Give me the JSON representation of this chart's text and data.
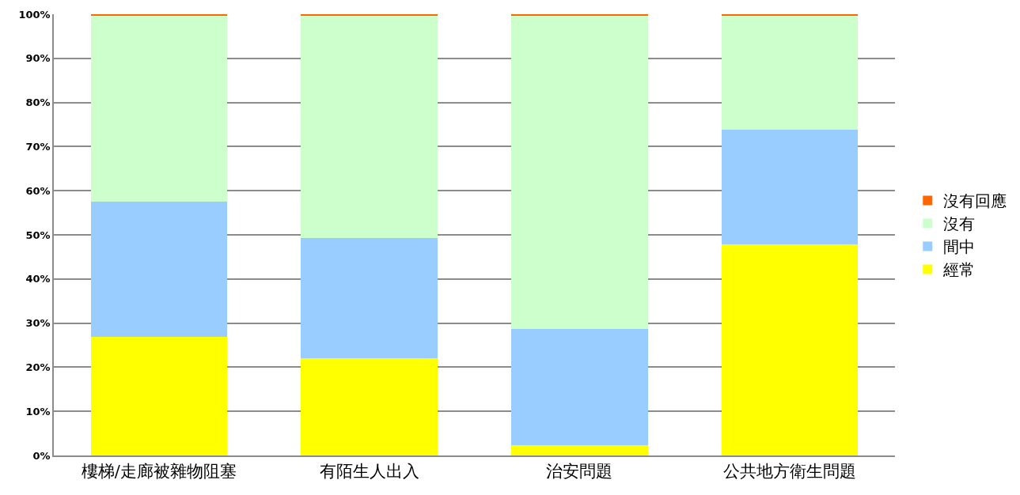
{
  "chart_data": {
    "type": "bar",
    "stacked": true,
    "categories": [
      "樓梯/走廊被雜物阻塞",
      "有陌生人出入",
      "治安問題",
      "公共地方衛生問題"
    ],
    "series": [
      {
        "name": "經常",
        "color": "#ffff00",
        "values": [
          26.9,
          22.1,
          2.3,
          47.8
        ]
      },
      {
        "name": "間中",
        "color": "#99ccff",
        "values": [
          30.7,
          27.2,
          26.4,
          26.1
        ]
      },
      {
        "name": "沒有",
        "color": "#ccffcc",
        "values": [
          42.0,
          50.3,
          70.9,
          25.7
        ]
      },
      {
        "name": "沒有回應",
        "color": "#ff6600",
        "values": [
          0.4,
          0.4,
          0.4,
          0.4
        ]
      }
    ],
    "ylim": [
      0,
      100
    ],
    "yticks": [
      {
        "value": 0,
        "label": "0%"
      },
      {
        "value": 10,
        "label": "10%"
      },
      {
        "value": 20,
        "label": "20%"
      },
      {
        "value": 30,
        "label": "30%"
      },
      {
        "value": 40,
        "label": "40%"
      },
      {
        "value": 50,
        "label": "50%"
      },
      {
        "value": 60,
        "label": "60%"
      },
      {
        "value": 70,
        "label": "70%"
      },
      {
        "value": 80,
        "label": "80%"
      },
      {
        "value": 90,
        "label": "90%"
      },
      {
        "value": 100,
        "label": "100%"
      }
    ],
    "grid": "y",
    "legend": "right"
  }
}
